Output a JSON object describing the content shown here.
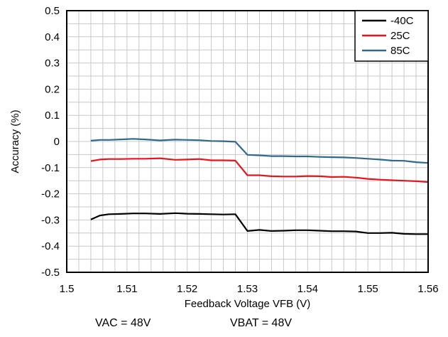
{
  "chart_data": {
    "type": "line",
    "xlabel": "Feedback Voltage VFB (V)",
    "ylabel": "Accuracy (%)",
    "xlim": [
      1.5,
      1.56
    ],
    "ylim": [
      -0.5,
      0.5
    ],
    "x_ticks": [
      "1.5",
      "1.51",
      "1.52",
      "1.53",
      "1.54",
      "1.55",
      "1.56"
    ],
    "y_ticks": [
      "0.5",
      "0.4",
      "0.3",
      "0.2",
      "0.1",
      "0",
      "-0.1",
      "-0.2",
      "-0.3",
      "-0.4",
      "-0.5"
    ],
    "x_tick_values": [
      1.5,
      1.51,
      1.52,
      1.53,
      1.54,
      1.55,
      1.56
    ],
    "y_tick_values": [
      0.5,
      0.4,
      0.3,
      0.2,
      0.1,
      0,
      -0.1,
      -0.2,
      -0.3,
      -0.4,
      -0.5
    ],
    "x_minor_step": 0.002,
    "y_minor_step": 0.05,
    "grid": true,
    "legend_position": "top-right",
    "series": [
      {
        "name": "-40C",
        "color": "#000000",
        "x": [
          1.504,
          1.5055,
          1.507,
          1.509,
          1.511,
          1.513,
          1.5155,
          1.518,
          1.52,
          1.522,
          1.524,
          1.526,
          1.528,
          1.53,
          1.532,
          1.534,
          1.536,
          1.538,
          1.54,
          1.542,
          1.544,
          1.546,
          1.548,
          1.55,
          1.552,
          1.554,
          1.556,
          1.558,
          1.56
        ],
        "y": [
          -0.298,
          -0.283,
          -0.278,
          -0.277,
          -0.275,
          -0.275,
          -0.277,
          -0.274,
          -0.276,
          -0.277,
          -0.278,
          -0.279,
          -0.278,
          -0.342,
          -0.338,
          -0.342,
          -0.341,
          -0.339,
          -0.339,
          -0.341,
          -0.343,
          -0.343,
          -0.344,
          -0.35,
          -0.35,
          -0.349,
          -0.353,
          -0.354,
          -0.354
        ]
      },
      {
        "name": "25C",
        "color": "#e8141c",
        "x": [
          1.504,
          1.5055,
          1.507,
          1.509,
          1.511,
          1.513,
          1.5155,
          1.518,
          1.52,
          1.522,
          1.524,
          1.526,
          1.528,
          1.53,
          1.532,
          1.534,
          1.536,
          1.538,
          1.54,
          1.542,
          1.544,
          1.546,
          1.548,
          1.55,
          1.552,
          1.554,
          1.556,
          1.558,
          1.56
        ],
        "y": [
          -0.075,
          -0.069,
          -0.067,
          -0.067,
          -0.066,
          -0.066,
          -0.064,
          -0.07,
          -0.069,
          -0.067,
          -0.072,
          -0.072,
          -0.073,
          -0.129,
          -0.129,
          -0.133,
          -0.134,
          -0.134,
          -0.132,
          -0.133,
          -0.136,
          -0.135,
          -0.138,
          -0.143,
          -0.146,
          -0.148,
          -0.15,
          -0.152,
          -0.155
        ]
      },
      {
        "name": "85C",
        "color": "#2f6a8c",
        "x": [
          1.504,
          1.5055,
          1.507,
          1.509,
          1.511,
          1.513,
          1.5155,
          1.518,
          1.52,
          1.522,
          1.524,
          1.526,
          1.528,
          1.53,
          1.532,
          1.534,
          1.536,
          1.538,
          1.54,
          1.542,
          1.544,
          1.546,
          1.548,
          1.55,
          1.552,
          1.554,
          1.556,
          1.558,
          1.56
        ],
        "y": [
          0.003,
          0.006,
          0.006,
          0.008,
          0.01,
          0.008,
          0.004,
          0.007,
          0.006,
          0.005,
          0.002,
          0.001,
          -0.001,
          -0.051,
          -0.053,
          -0.056,
          -0.056,
          -0.057,
          -0.057,
          -0.059,
          -0.06,
          -0.061,
          -0.063,
          -0.066,
          -0.069,
          -0.073,
          -0.074,
          -0.079,
          -0.082
        ]
      }
    ]
  },
  "caption": {
    "left": "VAC = 48V",
    "right": "VBAT = 48V"
  }
}
